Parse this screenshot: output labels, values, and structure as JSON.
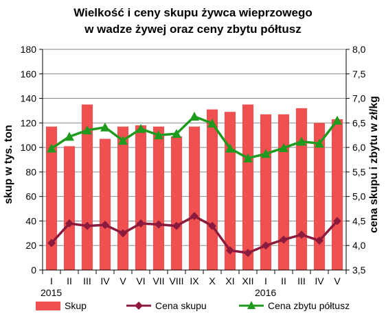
{
  "chart_data": {
    "type": "bar",
    "title_line1": "Wielkość i ceny skupu żywca wieprzowego",
    "title_line2": "w wadze żywej oraz ceny zbytu półtusz",
    "ylabel_left": "skup w tys. ton",
    "ylabel_right": "cena skupu i zbytu w zł/kg",
    "ylim_left": [
      0,
      180
    ],
    "ylim_right": [
      3.5,
      8.0
    ],
    "yticks_left": [
      "0",
      "20",
      "40",
      "60",
      "80",
      "100",
      "120",
      "140",
      "160",
      "180"
    ],
    "yticks_right": [
      "3,5",
      "4,0",
      "4,5",
      "5,0",
      "5,5",
      "6,0",
      "6,5",
      "7,0",
      "7,5",
      "8,0"
    ],
    "categories": [
      "I",
      "II",
      "III",
      "IV",
      "V",
      "VI",
      "VII",
      "VIII",
      "IX",
      "X",
      "XI",
      "XII",
      "I",
      "II",
      "III",
      "IV",
      "V"
    ],
    "year_labels": [
      {
        "label": "2015",
        "index": 0
      },
      {
        "label": "2016",
        "index": 12
      }
    ],
    "grid": true,
    "legend_position": "bottom",
    "series": [
      {
        "name": "Skup",
        "kind": "bar",
        "axis": "left",
        "color": "#f05050",
        "values": [
          117,
          101,
          135,
          107,
          117,
          118,
          117,
          109,
          117,
          131,
          129,
          135,
          127,
          127,
          132,
          120,
          123
        ]
      },
      {
        "name": "Cena skupu",
        "kind": "line",
        "axis": "right",
        "color": "#8b1a3c",
        "marker": "diamond",
        "values": [
          4.05,
          4.45,
          4.4,
          4.42,
          4.25,
          4.45,
          4.43,
          4.4,
          4.6,
          4.4,
          3.9,
          3.85,
          4.0,
          4.12,
          4.22,
          4.1,
          4.5
        ]
      },
      {
        "name": "Cena zbytu półtusz",
        "kind": "line",
        "axis": "right",
        "color": "#1e9a1e",
        "marker": "triangle",
        "values": [
          5.98,
          6.22,
          6.35,
          6.41,
          6.14,
          6.38,
          6.25,
          6.28,
          6.63,
          6.49,
          5.98,
          5.78,
          5.87,
          5.99,
          6.12,
          6.08,
          6.55
        ]
      }
    ]
  }
}
